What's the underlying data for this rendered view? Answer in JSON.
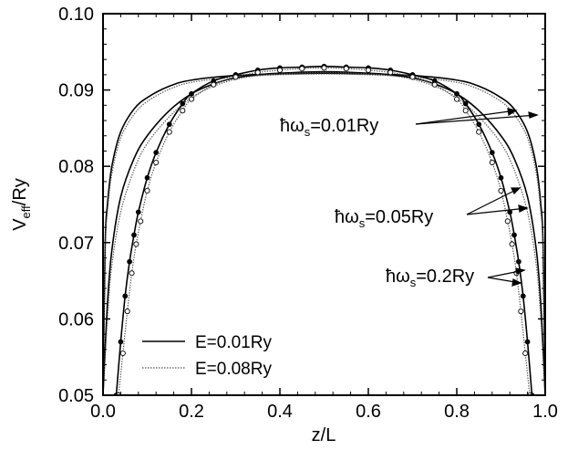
{
  "chart_data": {
    "type": "line",
    "xlabel": "z/L",
    "ylabel_main": "V",
    "ylabel_sub": "eff",
    "ylabel_rest": "/Ry",
    "xlim": [
      0.0,
      1.0
    ],
    "ylim": [
      0.05,
      0.1
    ],
    "x_ticks": [
      "0.0",
      "0.2",
      "0.4",
      "0.6",
      "0.8",
      "1.0"
    ],
    "y_ticks": [
      "0.05",
      "0.06",
      "0.07",
      "0.08",
      "0.09",
      "0.10"
    ],
    "legend": [
      {
        "label": "E=0.01Ry",
        "style": "solid",
        "color": "#000000"
      },
      {
        "label": "E=0.08Ry",
        "style": "dotted",
        "color": "#555555"
      }
    ],
    "annotations": [
      {
        "prefix": "ħω",
        "sub": "s",
        "suffix": "=0.01Ry"
      },
      {
        "prefix": "ħω",
        "sub": "s",
        "suffix": "=0.05Ry"
      },
      {
        "prefix": "ħω",
        "sub": "s",
        "suffix": "=0.2Ry"
      }
    ],
    "series": [
      {
        "group": 0,
        "energy": "E=0.01Ry",
        "x": [
          0.0,
          0.005,
          0.01,
          0.02,
          0.04,
          0.07,
          0.1,
          0.15,
          0.2,
          0.3,
          0.4,
          0.5,
          0.6,
          0.7,
          0.8,
          0.85,
          0.9,
          0.93,
          0.96,
          0.98,
          0.99,
          0.995,
          1.0
        ],
        "y": [
          0.05,
          0.07,
          0.075,
          0.08,
          0.0845,
          0.0875,
          0.089,
          0.0905,
          0.0913,
          0.0919,
          0.0921,
          0.0922,
          0.0921,
          0.0919,
          0.0913,
          0.0905,
          0.089,
          0.0875,
          0.0845,
          0.08,
          0.075,
          0.07,
          0.05
        ]
      },
      {
        "group": 0,
        "energy": "E=0.08Ry",
        "x": [
          0.0,
          0.005,
          0.01,
          0.02,
          0.04,
          0.07,
          0.1,
          0.15,
          0.2,
          0.3,
          0.4,
          0.5,
          0.6,
          0.7,
          0.8,
          0.85,
          0.9,
          0.93,
          0.96,
          0.98,
          0.99,
          0.995,
          1.0
        ],
        "y": [
          0.05,
          0.069,
          0.074,
          0.079,
          0.0837,
          0.0868,
          0.0885,
          0.0901,
          0.091,
          0.0917,
          0.092,
          0.0921,
          0.092,
          0.0917,
          0.091,
          0.0901,
          0.0885,
          0.0868,
          0.0837,
          0.079,
          0.074,
          0.069,
          0.05
        ]
      },
      {
        "group": 1,
        "energy": "E=0.01Ry",
        "x": [
          0.0,
          0.01,
          0.02,
          0.04,
          0.07,
          0.1,
          0.15,
          0.2,
          0.25,
          0.3,
          0.35,
          0.4,
          0.5,
          0.6,
          0.65,
          0.7,
          0.75,
          0.8,
          0.85,
          0.9,
          0.93,
          0.96,
          0.98,
          0.99,
          1.0
        ],
        "y": [
          0.05,
          0.062,
          0.069,
          0.076,
          0.081,
          0.084,
          0.0873,
          0.0895,
          0.0908,
          0.0916,
          0.092,
          0.0922,
          0.0924,
          0.0922,
          0.092,
          0.0916,
          0.0908,
          0.0895,
          0.0873,
          0.084,
          0.081,
          0.076,
          0.069,
          0.062,
          0.05
        ]
      },
      {
        "group": 1,
        "energy": "E=0.08Ry",
        "x": [
          0.0,
          0.01,
          0.02,
          0.04,
          0.07,
          0.1,
          0.15,
          0.2,
          0.25,
          0.3,
          0.35,
          0.4,
          0.5,
          0.6,
          0.65,
          0.7,
          0.75,
          0.8,
          0.85,
          0.9,
          0.93,
          0.96,
          0.98,
          0.99,
          1.0
        ],
        "y": [
          0.05,
          0.06,
          0.067,
          0.074,
          0.0795,
          0.083,
          0.0865,
          0.089,
          0.0905,
          0.0914,
          0.0919,
          0.0921,
          0.0923,
          0.0921,
          0.0919,
          0.0914,
          0.0905,
          0.089,
          0.0865,
          0.083,
          0.0795,
          0.074,
          0.067,
          0.06,
          0.05
        ]
      },
      {
        "group": 2,
        "energy": "E=0.01Ry",
        "x": [
          0.03,
          0.04,
          0.05,
          0.06,
          0.07,
          0.08,
          0.1,
          0.12,
          0.15,
          0.18,
          0.2,
          0.25,
          0.3,
          0.35,
          0.4,
          0.45,
          0.5,
          0.55,
          0.6,
          0.65,
          0.7,
          0.75,
          0.8,
          0.82,
          0.85,
          0.88,
          0.9,
          0.92,
          0.93,
          0.94,
          0.95,
          0.96,
          0.97
        ],
        "y": [
          0.05,
          0.057,
          0.063,
          0.0675,
          0.071,
          0.074,
          0.0785,
          0.0818,
          0.0855,
          0.0882,
          0.0895,
          0.0912,
          0.092,
          0.0926,
          0.0929,
          0.093,
          0.0931,
          0.093,
          0.0929,
          0.0926,
          0.092,
          0.0912,
          0.0895,
          0.0882,
          0.0855,
          0.0818,
          0.0785,
          0.074,
          0.071,
          0.0675,
          0.063,
          0.057,
          0.05
        ]
      },
      {
        "group": 2,
        "energy": "E=0.08Ry",
        "x": [
          0.035,
          0.045,
          0.055,
          0.065,
          0.075,
          0.085,
          0.1,
          0.12,
          0.15,
          0.18,
          0.2,
          0.25,
          0.3,
          0.35,
          0.4,
          0.45,
          0.5,
          0.55,
          0.6,
          0.65,
          0.7,
          0.75,
          0.8,
          0.82,
          0.85,
          0.88,
          0.9,
          0.915,
          0.925,
          0.935,
          0.945,
          0.955,
          0.965
        ],
        "y": [
          0.05,
          0.0555,
          0.061,
          0.066,
          0.0698,
          0.0728,
          0.0768,
          0.0805,
          0.0845,
          0.0873,
          0.0888,
          0.0907,
          0.0917,
          0.0923,
          0.0926,
          0.0928,
          0.0929,
          0.0928,
          0.0926,
          0.0923,
          0.0917,
          0.0907,
          0.0888,
          0.0873,
          0.0845,
          0.0805,
          0.0768,
          0.0728,
          0.0698,
          0.066,
          0.061,
          0.0555,
          0.05
        ]
      }
    ]
  }
}
